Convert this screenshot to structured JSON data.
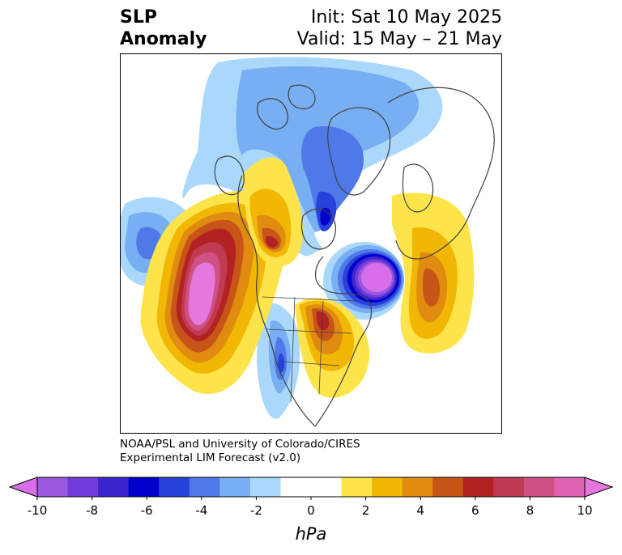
{
  "title": {
    "left_line1": "SLP",
    "left_line2": "Anomaly",
    "init": "Init: Sat 10 May 2025",
    "valid": "Valid: 15 May – 21 May"
  },
  "credit": {
    "line1": "NOAA/PSL and University of Colorado/CIRES",
    "line2": "Experimental LIM Forecast (v2.0)"
  },
  "colorbar": {
    "unit": "hPa",
    "tick_labels": [
      "-10",
      "-8",
      "-6",
      "-4",
      "-2",
      "0",
      "2",
      "4",
      "6",
      "8",
      "10"
    ],
    "colors": [
      "#9b59e0",
      "#6f3bd9",
      "#3b25cf",
      "#0000cc",
      "#2741d9",
      "#4f78e8",
      "#78aef2",
      "#aad8fb",
      "#ffffff",
      "#ffffff",
      "#fde44a",
      "#f2b705",
      "#e08c10",
      "#c85518",
      "#b32222",
      "#c03a52",
      "#cf5085",
      "#df62b3"
    ],
    "under_color": "#d86fe8",
    "over_color": "#e677dc"
  },
  "colors": {
    "coastline": "#404040"
  }
}
